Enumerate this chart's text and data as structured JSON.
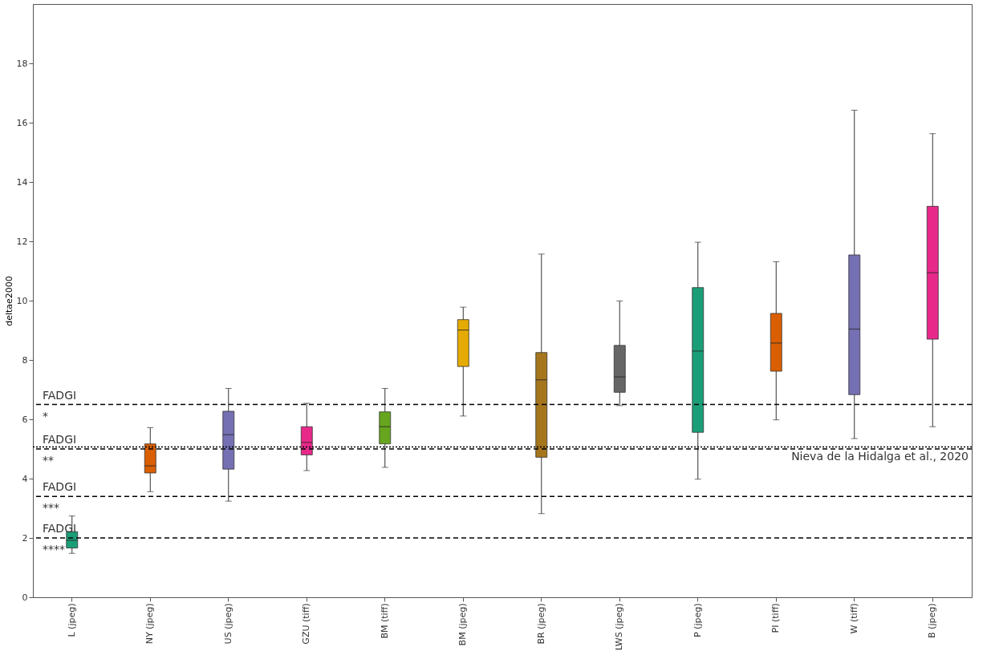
{
  "chart_data": {
    "type": "box",
    "ylabel": "deltae2000",
    "categories": [
      "L (jpeg)",
      "NY (jpeg)",
      "US (jpeg)",
      "GZU (tiff)",
      "BM (tiff)",
      "BM (jpeg)",
      "BR (jpeg)",
      "LWS (jpeg)",
      "P (jpeg)",
      "PI (tiff)",
      "W (tiff)",
      "B (jpeg)"
    ],
    "colors": [
      "#1b9e77",
      "#d95f02",
      "#7570b3",
      "#e7298a",
      "#66a61e",
      "#e6ab02",
      "#a6761d",
      "#666666",
      "#1b9e77",
      "#d95f02",
      "#7570b3",
      "#e7298a"
    ],
    "boxes": [
      {
        "low": 1.48,
        "q1": 1.66,
        "median": 1.92,
        "q3": 2.21,
        "high": 2.74
      },
      {
        "low": 3.56,
        "q1": 4.19,
        "median": 4.43,
        "q3": 5.17,
        "high": 5.72
      },
      {
        "low": 3.24,
        "q1": 4.32,
        "median": 5.48,
        "q3": 6.27,
        "high": 7.04
      },
      {
        "low": 4.27,
        "q1": 4.8,
        "median": 5.22,
        "q3": 5.75,
        "high": 6.54
      },
      {
        "low": 4.38,
        "q1": 5.17,
        "median": 5.75,
        "q3": 6.25,
        "high": 7.04
      },
      {
        "low": 6.11,
        "q1": 7.78,
        "median": 9.01,
        "q3": 9.36,
        "high": 9.78
      },
      {
        "low": 2.82,
        "q1": 4.72,
        "median": 7.33,
        "q3": 8.25,
        "high": 11.57
      },
      {
        "low": 6.46,
        "q1": 6.91,
        "median": 7.43,
        "q3": 8.49,
        "high": 9.99
      },
      {
        "low": 3.98,
        "q1": 5.56,
        "median": 8.3,
        "q3": 10.44,
        "high": 11.97
      },
      {
        "low": 5.98,
        "q1": 7.62,
        "median": 8.57,
        "q3": 9.57,
        "high": 11.31
      },
      {
        "low": 5.35,
        "q1": 6.83,
        "median": 9.04,
        "q3": 11.54,
        "high": 16.42
      },
      {
        "low": 5.75,
        "q1": 8.7,
        "median": 10.94,
        "q3": 13.18,
        "high": 15.63
      }
    ],
    "ylim": [
      0,
      20
    ],
    "yticks": [
      0,
      2,
      4,
      6,
      8,
      10,
      12,
      14,
      16,
      18
    ],
    "grid": false,
    "ref_lines": [
      {
        "axis": "y",
        "value": 6.5,
        "label": "FADGI *",
        "line_style": "dashed",
        "color": "#000000"
      },
      {
        "axis": "y",
        "value": 5.0,
        "label": "FADGI **",
        "line_style": "dashed",
        "color": "#000000"
      },
      {
        "axis": "y",
        "value": 5.07,
        "label": "Nieva de la Hidalga et al., 2020",
        "line_style": "dotted",
        "color": "#000000"
      },
      {
        "axis": "y",
        "value": 3.4,
        "label": "FADGI ***",
        "line_style": "dashed",
        "color": "#000000"
      },
      {
        "axis": "y",
        "value": 2.0,
        "label": "FADGI ****",
        "line_style": "dashed",
        "color": "#000000"
      }
    ]
  }
}
